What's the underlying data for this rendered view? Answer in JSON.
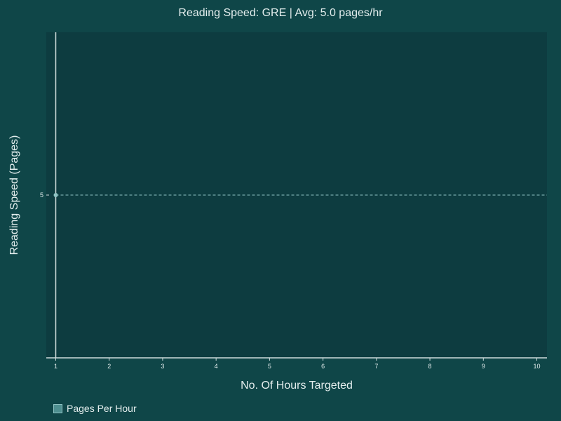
{
  "chart_data": {
    "type": "scatter",
    "title": "Reading Speed: GRE | Avg: 5.0 pages/hr",
    "xlabel": "No. Of Hours Targeted",
    "ylabel": "Reading Speed (Pages)",
    "x_ticks": [
      "1",
      "2",
      "3",
      "4",
      "5",
      "6",
      "7",
      "8",
      "9",
      "10"
    ],
    "xlim": [
      1,
      10
    ],
    "y_ticks": [
      "5"
    ],
    "ylim": [
      0,
      10
    ],
    "series": [
      {
        "name": "Pages Per Hour",
        "x": [
          1
        ],
        "y": [
          5
        ],
        "color": "#8fc3c3"
      }
    ],
    "average_line": {
      "value": 5.0,
      "style": "dashed",
      "color": "#8fc3c3"
    },
    "legend": "bottom-left",
    "grid": false,
    "colors": {
      "background": "#0f4648",
      "plot_background": "#0d3c40",
      "axis": "#cfdcdc"
    }
  }
}
